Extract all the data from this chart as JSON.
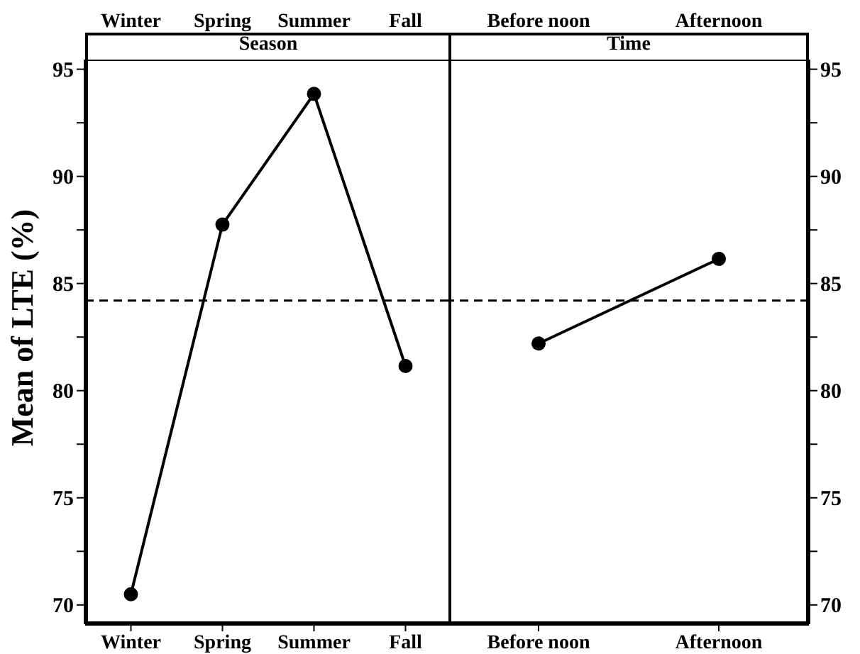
{
  "chart_data": [
    {
      "type": "line",
      "title": "Season",
      "ylabel": "Mean of LTE (%)",
      "categories": [
        "Winter",
        "Spring",
        "Summer",
        "Fall"
      ],
      "values": [
        70.5,
        87.75,
        93.85,
        81.15
      ],
      "color": "#000000",
      "marker": "circle",
      "line_style": "solid",
      "ylim": [
        69.1,
        95.45
      ],
      "yticks": [
        70,
        {
          "value": 72.5,
          "label": null
        },
        75,
        {
          "value": 77.5,
          "label": null
        },
        80,
        {
          "value": 82.5,
          "label": null
        },
        85,
        {
          "value": 87.5,
          "label": null
        },
        90,
        {
          "value": 92.5,
          "label": null
        },
        95
      ],
      "ref_lines": [
        {
          "axis": "y",
          "value": 84.2,
          "line_style": "dashed",
          "color": "#000000"
        }
      ]
    },
    {
      "type": "line",
      "title": "Time",
      "categories": [
        "Before noon",
        "Afternoon"
      ],
      "values": [
        82.2,
        86.15
      ],
      "color": "#000000",
      "marker": "circle",
      "line_style": "solid",
      "ylim": [
        69.1,
        95.45
      ],
      "yticks": [
        70,
        {
          "value": 72.5,
          "label": null
        },
        75,
        {
          "value": 77.5,
          "label": null
        },
        80,
        {
          "value": 82.5,
          "label": null
        },
        85,
        {
          "value": 87.5,
          "label": null
        },
        90,
        {
          "value": 92.5,
          "label": null
        },
        95
      ],
      "ref_lines": [
        {
          "axis": "y",
          "value": 84.2,
          "line_style": "dashed",
          "color": "#000000"
        }
      ]
    }
  ]
}
